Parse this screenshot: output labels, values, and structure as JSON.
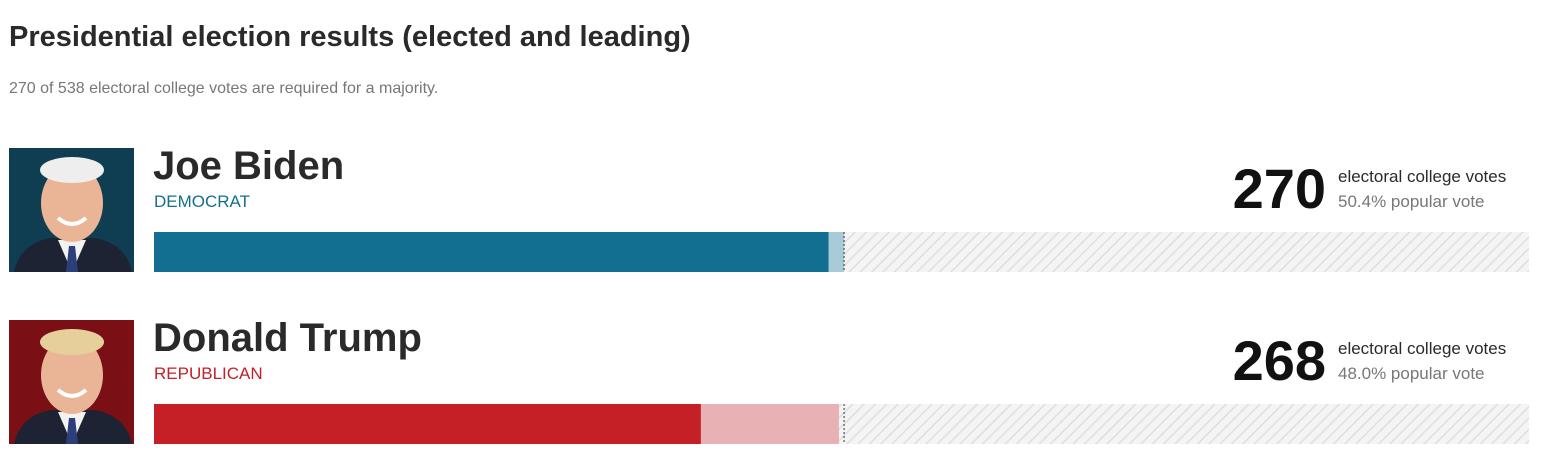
{
  "header": {
    "title": "Presidential election results (elected and leading)",
    "subtitle": "270 of 538 electoral college votes are required for a majority."
  },
  "scale": {
    "xlim": [
      0,
      538
    ],
    "majority": 270
  },
  "candidates": [
    {
      "name": "Joe Biden",
      "party": "DEMOCRAT",
      "electoral_votes": 270,
      "votes_label": "electoral college votes",
      "popular_vote": "50.4% popular vote",
      "elected": 264,
      "leading": 6,
      "color": "#136f92",
      "leading_color": "#a9cbd8",
      "party_color": "#14708f",
      "photo_bg": "#0f3e52"
    },
    {
      "name": "Donald Trump",
      "party": "REPUBLICAN",
      "electoral_votes": 268,
      "votes_label": "electoral college votes",
      "popular_vote": "48.0% popular vote",
      "elected": 214,
      "leading": 54,
      "color": "#c42026",
      "leading_color": "#e8b2b5",
      "party_color": "#c42026",
      "photo_bg": "#7a1015"
    }
  ]
}
